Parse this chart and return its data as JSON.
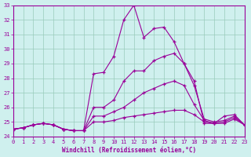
{
  "xlabel": "Windchill (Refroidissement éolien,°C)",
  "background_color": "#cff0ee",
  "grid_color": "#99ccbb",
  "line_color": "#990099",
  "xlim": [
    0,
    23
  ],
  "ylim": [
    24,
    33
  ],
  "xticks": [
    0,
    1,
    2,
    3,
    4,
    5,
    6,
    7,
    8,
    9,
    10,
    11,
    12,
    13,
    14,
    15,
    16,
    17,
    18,
    19,
    20,
    21,
    22,
    23
  ],
  "yticks": [
    24,
    25,
    26,
    27,
    28,
    29,
    30,
    31,
    32,
    33
  ],
  "series": [
    {
      "x": [
        0,
        1,
        2,
        3,
        4,
        5,
        6,
        7,
        8,
        9,
        10,
        11,
        12,
        13,
        14,
        15,
        16,
        17,
        18,
        19,
        20,
        21,
        22,
        23
      ],
      "y": [
        24.5,
        24.6,
        24.8,
        24.9,
        24.8,
        24.5,
        24.4,
        24.4,
        28.3,
        28.4,
        29.5,
        32.0,
        33.0,
        30.8,
        31.4,
        31.5,
        30.5,
        29.0,
        27.8,
        24.9,
        24.9,
        25.4,
        25.5,
        24.8
      ]
    },
    {
      "x": [
        0,
        1,
        2,
        3,
        4,
        5,
        6,
        7,
        8,
        9,
        10,
        11,
        12,
        13,
        14,
        15,
        16,
        17,
        18,
        19,
        20,
        21,
        22,
        23
      ],
      "y": [
        24.5,
        24.6,
        24.8,
        24.9,
        24.8,
        24.5,
        24.4,
        24.4,
        26.0,
        26.0,
        26.5,
        27.8,
        28.5,
        28.5,
        29.2,
        29.5,
        29.7,
        29.0,
        27.5,
        25.2,
        25.0,
        25.1,
        25.4,
        24.8
      ]
    },
    {
      "x": [
        0,
        1,
        2,
        3,
        4,
        5,
        6,
        7,
        8,
        9,
        10,
        11,
        12,
        13,
        14,
        15,
        16,
        17,
        18,
        19,
        20,
        21,
        22,
        23
      ],
      "y": [
        24.5,
        24.6,
        24.8,
        24.9,
        24.8,
        24.5,
        24.4,
        24.4,
        25.4,
        25.4,
        25.7,
        26.0,
        26.5,
        27.0,
        27.3,
        27.6,
        27.8,
        27.5,
        26.2,
        25.1,
        24.9,
        25.0,
        25.3,
        24.8
      ]
    },
    {
      "x": [
        0,
        1,
        2,
        3,
        4,
        5,
        6,
        7,
        8,
        9,
        10,
        11,
        12,
        13,
        14,
        15,
        16,
        17,
        18,
        19,
        20,
        21,
        22,
        23
      ],
      "y": [
        24.5,
        24.6,
        24.8,
        24.9,
        24.8,
        24.5,
        24.4,
        24.4,
        25.0,
        25.0,
        25.1,
        25.3,
        25.4,
        25.5,
        25.6,
        25.7,
        25.8,
        25.8,
        25.5,
        25.0,
        24.9,
        24.9,
        25.2,
        24.8
      ]
    }
  ],
  "figwidth": 3.2,
  "figheight": 2.0,
  "dpi": 100
}
